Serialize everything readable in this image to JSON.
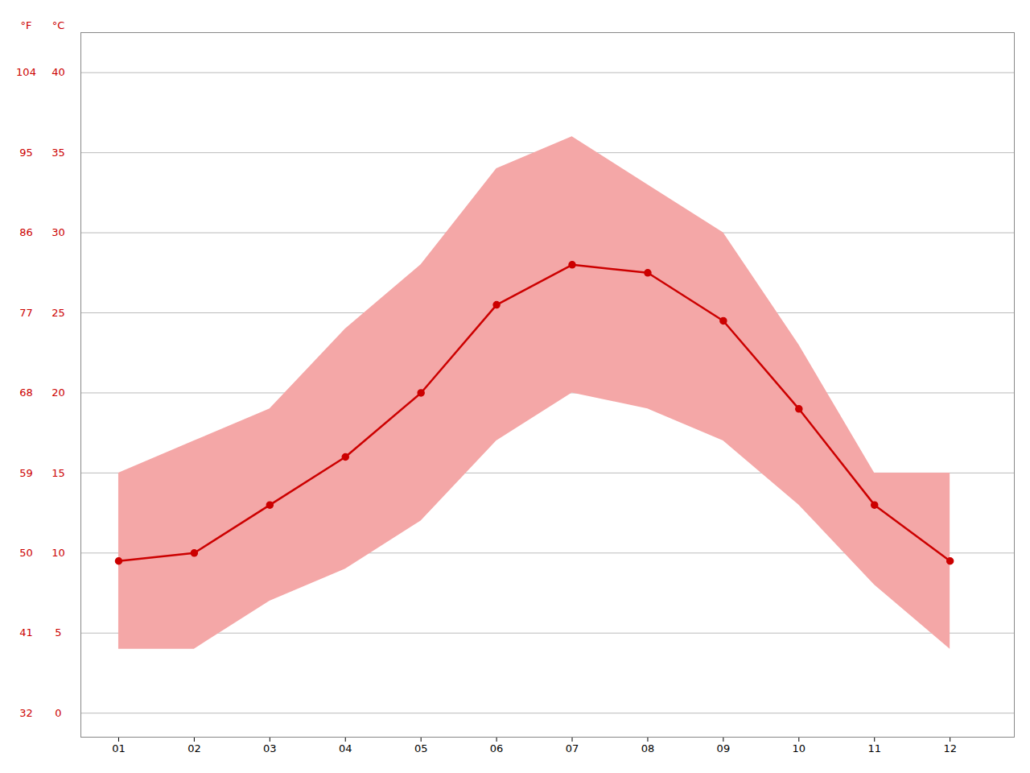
{
  "chart_data": {
    "type": "line",
    "x": [
      1,
      2,
      3,
      4,
      5,
      6,
      7,
      8,
      9,
      10,
      11,
      12
    ],
    "xlim": [
      0.5,
      12.85
    ],
    "xticks": [
      {
        "value": 1,
        "label": "01"
      },
      {
        "value": 2,
        "label": "02"
      },
      {
        "value": 3,
        "label": "03"
      },
      {
        "value": 4,
        "label": "04"
      },
      {
        "value": 5,
        "label": "05"
      },
      {
        "value": 6,
        "label": "06"
      },
      {
        "value": 7,
        "label": "07"
      },
      {
        "value": 8,
        "label": "08"
      },
      {
        "value": 9,
        "label": "09"
      },
      {
        "value": 10,
        "label": "10"
      },
      {
        "value": 11,
        "label": "11"
      },
      {
        "value": 12,
        "label": "12"
      }
    ],
    "ylabel": "°C",
    "ylim": [
      -1.5,
      42.5
    ],
    "yticks": [
      0,
      5,
      10,
      15,
      20,
      25,
      30,
      35,
      40
    ],
    "y2label": "°F",
    "y2lim": [
      29.3,
      108.5
    ],
    "y2ticks": [
      32,
      41,
      50,
      59,
      68,
      77,
      86,
      95,
      104
    ],
    "grid": true,
    "series": [
      {
        "type": "band",
        "color": "#f4a7a7",
        "lower": [
          4.0,
          4.0,
          7.0,
          9.0,
          12.0,
          17.0,
          20.0,
          19.0,
          17.0,
          13.0,
          8.0,
          4.0
        ],
        "upper": [
          15.0,
          17.0,
          19.0,
          24.0,
          28.0,
          34.0,
          36.0,
          33.0,
          30.0,
          23.0,
          15.0,
          15.0
        ]
      },
      {
        "type": "line",
        "color": "#cc0000",
        "marker": "circle",
        "values": [
          9.5,
          10.0,
          13.0,
          16.0,
          20.0,
          25.5,
          28.0,
          27.5,
          24.5,
          19.0,
          13.0,
          9.5
        ]
      }
    ]
  }
}
